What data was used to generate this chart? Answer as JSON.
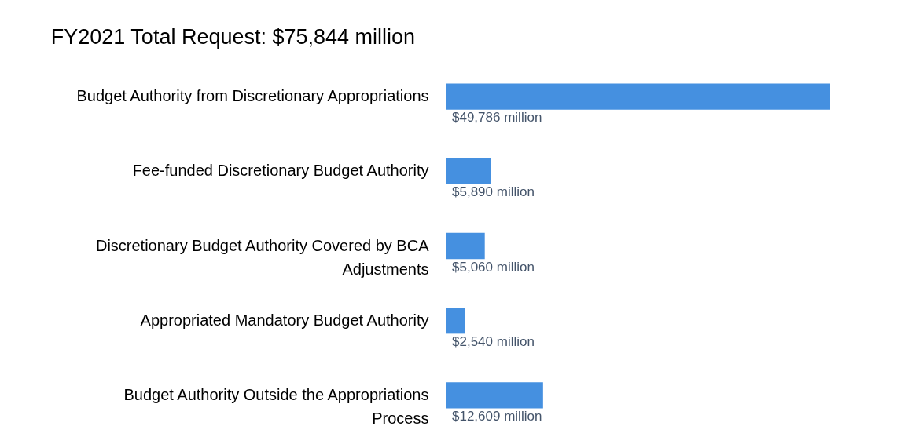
{
  "chart_data": {
    "type": "bar",
    "orientation": "horizontal",
    "title": "FY2021 Total Request: $75,844 million",
    "categories": [
      "Budget Authority from Discretionary Appropriations",
      "Fee-funded Discretionary Budget Authority",
      "Discretionary Budget Authority Covered by BCA Adjustments",
      "Appropriated Mandatory Budget Authority",
      "Budget Authority Outside the Appropriations Process"
    ],
    "values": [
      49786,
      5890,
      5060,
      2540,
      12609
    ],
    "value_labels": [
      "$49,786 million",
      "$5,890 million",
      "$5,060 million",
      "$2,540 million",
      "$12,609 million"
    ],
    "color": "#4590e0"
  }
}
